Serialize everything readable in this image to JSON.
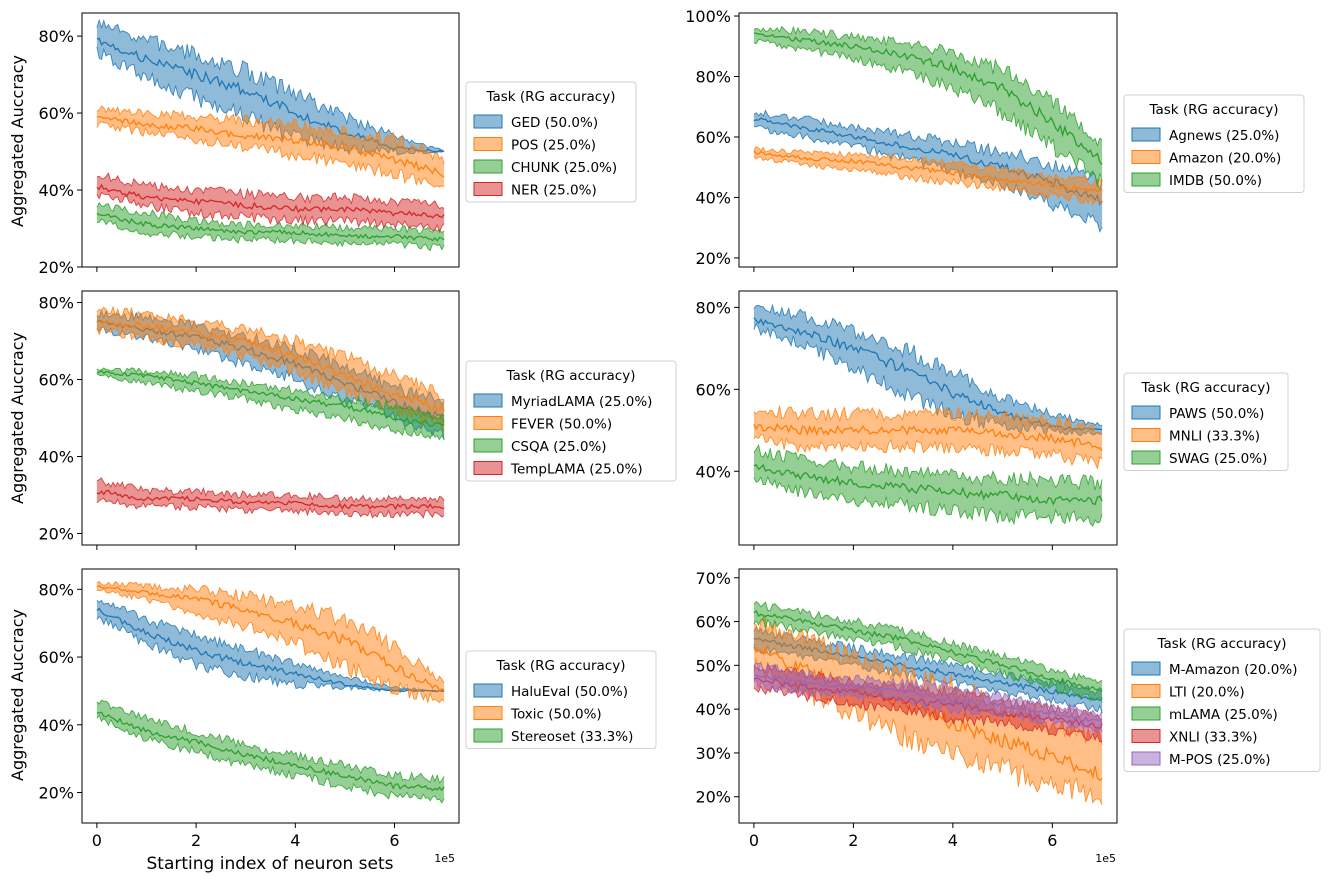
{
  "figure": {
    "ylabel": "Aggregated Auccracy",
    "xlabel": "Starting index of neuron sets",
    "x_exponent": "1e5"
  },
  "colors": {
    "blue": "#1f77b4",
    "orange": "#ff7f0e",
    "green": "#2ca02c",
    "red": "#d62728",
    "purple": "#9467bd"
  },
  "chart_data": [
    {
      "type": "area",
      "legend_title": "Task (RG accuracy)",
      "xlim": [
        -0.3,
        7.3
      ],
      "ylim": [
        20,
        86
      ],
      "xticks": [
        0,
        2,
        4,
        6
      ],
      "yticks": [
        20,
        40,
        60,
        80
      ],
      "ytick_format": "percent",
      "show_xticklabels": false,
      "show_ylabel": true,
      "show_xlabel": false,
      "series": [
        {
          "name": "GED (50.0%)",
          "color": "blue",
          "x": [
            0,
            1,
            2,
            3,
            4,
            5,
            6,
            7
          ],
          "mean": [
            79,
            74,
            70,
            66,
            60,
            55,
            51,
            50
          ],
          "upper": [
            83,
            79,
            75,
            71,
            65,
            59,
            54,
            50
          ],
          "lower": [
            76,
            69,
            64,
            59,
            54,
            51,
            50,
            50
          ]
        },
        {
          "name": "POS (25.0%)",
          "color": "orange",
          "x": [
            0,
            1,
            2,
            3,
            4,
            5,
            6,
            7
          ],
          "mean": [
            59,
            57,
            56,
            54,
            53,
            51,
            48,
            44
          ],
          "upper": [
            61,
            60,
            59,
            58,
            57,
            55,
            53,
            48
          ],
          "lower": [
            57,
            55,
            53,
            51,
            49,
            47,
            44,
            40
          ]
        },
        {
          "name": "CHUNK (25.0%)",
          "color": "green",
          "x": [
            0,
            1,
            2,
            3,
            4,
            5,
            6,
            7
          ],
          "mean": [
            34,
            31,
            30,
            29,
            29,
            28,
            28,
            27
          ],
          "upper": [
            36,
            34,
            32,
            31,
            31,
            30,
            30,
            29
          ],
          "lower": [
            32,
            29,
            28,
            27,
            27,
            26,
            26,
            25
          ]
        },
        {
          "name": "NER (25.0%)",
          "color": "red",
          "x": [
            0,
            1,
            2,
            3,
            4,
            5,
            6,
            7
          ],
          "mean": [
            41,
            38,
            37,
            36,
            35,
            35,
            34,
            33
          ],
          "upper": [
            44,
            41,
            40,
            39,
            38,
            38,
            37,
            36
          ],
          "lower": [
            39,
            36,
            34,
            33,
            32,
            32,
            31,
            30
          ]
        }
      ]
    },
    {
      "type": "area",
      "legend_title": "Task (RG accuracy)",
      "xlim": [
        -0.3,
        7.3
      ],
      "ylim": [
        17,
        101
      ],
      "xticks": [
        0,
        2,
        4,
        6
      ],
      "yticks": [
        20,
        40,
        60,
        80,
        100
      ],
      "ytick_format": "percent",
      "show_xticklabels": false,
      "show_ylabel": false,
      "show_xlabel": false,
      "series": [
        {
          "name": "Agnews (25.0%)",
          "color": "blue",
          "x": [
            0,
            1,
            2,
            3,
            4,
            5,
            6,
            7
          ],
          "mean": [
            66,
            63,
            60,
            57,
            54,
            50,
            45,
            39
          ],
          "upper": [
            68,
            66,
            63,
            61,
            58,
            55,
            51,
            45
          ],
          "lower": [
            63,
            60,
            57,
            53,
            49,
            44,
            38,
            31
          ]
        },
        {
          "name": "Amazon (20.0%)",
          "color": "orange",
          "x": [
            0,
            1,
            2,
            3,
            4,
            5,
            6,
            7
          ],
          "mean": [
            55,
            53,
            52,
            50,
            48,
            46,
            44,
            42
          ],
          "upper": [
            56,
            55,
            54,
            53,
            51,
            49,
            47,
            45
          ],
          "lower": [
            53,
            51,
            49,
            47,
            45,
            43,
            41,
            38
          ]
        },
        {
          "name": "IMDB (50.0%)",
          "color": "green",
          "x": [
            0,
            1,
            2,
            3,
            4,
            5,
            6,
            7
          ],
          "mean": [
            94,
            92,
            90,
            87,
            83,
            76,
            65,
            52
          ],
          "upper": [
            96,
            95,
            93,
            91,
            88,
            82,
            72,
            58
          ],
          "lower": [
            92,
            89,
            86,
            82,
            76,
            68,
            57,
            45
          ]
        }
      ]
    },
    {
      "type": "area",
      "legend_title": "Task (RG accuracy)",
      "xlim": [
        -0.3,
        7.3
      ],
      "ylim": [
        17,
        83
      ],
      "xticks": [
        0,
        2,
        4,
        6
      ],
      "yticks": [
        20,
        40,
        60,
        80
      ],
      "ytick_format": "percent",
      "show_xticklabels": false,
      "show_ylabel": true,
      "show_xlabel": false,
      "series": [
        {
          "name": "MyriadLAMA (25.0%)",
          "color": "blue",
          "x": [
            0,
            1,
            2,
            3,
            4,
            5,
            6,
            7
          ],
          "mean": [
            75,
            73,
            71,
            68,
            64,
            59,
            54,
            50
          ],
          "upper": [
            77,
            76,
            74,
            71,
            68,
            63,
            58,
            54
          ],
          "lower": [
            73,
            71,
            68,
            64,
            60,
            55,
            50,
            46
          ]
        },
        {
          "name": "FEVER (50.0%)",
          "color": "orange",
          "x": [
            0,
            1,
            2,
            3,
            4,
            5,
            6,
            7
          ],
          "mean": [
            75,
            74,
            72,
            70,
            66,
            61,
            56,
            52
          ],
          "upper": [
            78,
            77,
            75,
            73,
            70,
            66,
            61,
            56
          ],
          "lower": [
            73,
            71,
            69,
            66,
            62,
            57,
            52,
            48
          ]
        },
        {
          "name": "CSQA (25.0%)",
          "color": "green",
          "x": [
            0,
            1,
            2,
            3,
            4,
            5,
            6,
            7
          ],
          "mean": [
            62,
            61,
            59,
            57,
            55,
            53,
            50,
            48
          ],
          "upper": [
            63,
            62,
            61,
            59,
            57,
            55,
            53,
            50
          ],
          "lower": [
            61,
            59,
            57,
            55,
            52,
            50,
            47,
            45
          ]
        },
        {
          "name": "TempLAMA (25.0%)",
          "color": "red",
          "x": [
            0,
            1,
            2,
            3,
            4,
            5,
            6,
            7
          ],
          "mean": [
            31,
            29,
            29,
            28,
            28,
            27,
            27,
            27
          ],
          "upper": [
            34,
            31,
            31,
            30,
            30,
            29,
            29,
            29
          ],
          "lower": [
            29,
            27,
            27,
            26,
            26,
            25,
            25,
            25
          ]
        }
      ]
    },
    {
      "type": "area",
      "legend_title": "Task (RG accuracy)",
      "xlim": [
        -0.3,
        7.3
      ],
      "ylim": [
        22,
        84
      ],
      "xticks": [
        0,
        2,
        4,
        6
      ],
      "yticks": [
        40,
        60,
        80
      ],
      "ytick_format": "percent",
      "show_xticklabels": false,
      "show_ylabel": false,
      "show_xlabel": false,
      "series": [
        {
          "name": "PAWS (50.0%)",
          "color": "blue",
          "x": [
            0,
            1,
            2,
            3,
            4,
            5,
            6,
            7
          ],
          "mean": [
            77,
            74,
            70,
            65,
            59,
            54,
            51,
            50
          ],
          "upper": [
            80,
            78,
            74,
            70,
            64,
            58,
            54,
            51
          ],
          "lower": [
            75,
            71,
            65,
            59,
            54,
            51,
            50,
            49
          ]
        },
        {
          "name": "MNLI (33.3%)",
          "color": "orange",
          "x": [
            0,
            1,
            2,
            3,
            4,
            5,
            6,
            7
          ],
          "mean": [
            51,
            50,
            50,
            50,
            50,
            49,
            48,
            46
          ],
          "upper": [
            55,
            54,
            54,
            54,
            54,
            53,
            52,
            50
          ],
          "lower": [
            48,
            46,
            46,
            46,
            46,
            45,
            44,
            42
          ]
        },
        {
          "name": "SWAG (25.0%)",
          "color": "green",
          "x": [
            0,
            1,
            2,
            3,
            4,
            5,
            6,
            7
          ],
          "mean": [
            41,
            39,
            37,
            36,
            35,
            34,
            33,
            33
          ],
          "upper": [
            45,
            43,
            41,
            40,
            39,
            38,
            38,
            37
          ],
          "lower": [
            38,
            35,
            33,
            32,
            30,
            29,
            29,
            28
          ]
        }
      ]
    },
    {
      "type": "area",
      "legend_title": "Task (RG accuracy)",
      "xlim": [
        -0.3,
        7.3
      ],
      "ylim": [
        11,
        86
      ],
      "xticks": [
        0,
        2,
        4,
        6
      ],
      "yticks": [
        20,
        40,
        60,
        80
      ],
      "ytick_format": "percent",
      "show_xticklabels": true,
      "show_ylabel": true,
      "show_xlabel": true,
      "series": [
        {
          "name": "HaluEval (50.0%)",
          "color": "blue",
          "x": [
            0,
            1,
            2,
            3,
            4,
            5,
            6,
            7
          ],
          "mean": [
            74,
            67,
            62,
            58,
            55,
            52,
            50,
            50
          ],
          "upper": [
            77,
            71,
            66,
            62,
            58,
            54,
            51,
            50
          ],
          "lower": [
            72,
            64,
            58,
            54,
            52,
            51,
            50,
            50
          ]
        },
        {
          "name": "Toxic (50.0%)",
          "color": "orange",
          "x": [
            0,
            1,
            2,
            3,
            4,
            5,
            6,
            7
          ],
          "mean": [
            81,
            79,
            77,
            74,
            70,
            65,
            57,
            50
          ],
          "upper": [
            82,
            81,
            80,
            78,
            75,
            71,
            63,
            53
          ],
          "lower": [
            80,
            77,
            73,
            69,
            64,
            57,
            51,
            47
          ]
        },
        {
          "name": "Stereoset (33.3%)",
          "color": "green",
          "x": [
            0,
            1,
            2,
            3,
            4,
            5,
            6,
            7
          ],
          "mean": [
            44,
            38,
            35,
            31,
            28,
            25,
            22,
            21
          ],
          "upper": [
            47,
            42,
            38,
            34,
            31,
            28,
            25,
            24
          ],
          "lower": [
            42,
            36,
            32,
            28,
            25,
            22,
            19,
            18
          ]
        }
      ]
    },
    {
      "type": "area",
      "legend_title": "Task (RG accuracy)",
      "xlim": [
        -0.3,
        7.3
      ],
      "ylim": [
        14,
        72
      ],
      "xticks": [
        0,
        2,
        4,
        6
      ],
      "yticks": [
        20,
        30,
        40,
        50,
        60,
        70
      ],
      "ytick_format": "percent",
      "show_xticklabels": true,
      "show_ylabel": false,
      "show_xlabel": false,
      "series": [
        {
          "name": "M-Amazon (20.0%)",
          "color": "blue",
          "x": [
            0,
            1,
            2,
            3,
            4,
            5,
            6,
            7
          ],
          "mean": [
            56,
            54,
            52,
            50,
            48,
            46,
            44,
            42
          ],
          "upper": [
            58,
            56,
            54,
            52,
            50,
            48,
            46,
            44
          ],
          "lower": [
            54,
            52,
            50,
            48,
            46,
            44,
            42,
            40
          ]
        },
        {
          "name": "LTI (20.0%)",
          "color": "orange",
          "x": [
            0,
            1,
            2,
            3,
            4,
            5,
            6,
            7
          ],
          "mean": [
            54,
            49,
            45,
            41,
            37,
            33,
            29,
            25
          ],
          "upper": [
            60,
            56,
            52,
            48,
            45,
            41,
            37,
            33
          ],
          "lower": [
            50,
            44,
            39,
            34,
            30,
            26,
            23,
            20
          ]
        },
        {
          "name": "mLAMA (25.0%)",
          "color": "green",
          "x": [
            0,
            1,
            2,
            3,
            4,
            5,
            6,
            7
          ],
          "mean": [
            62,
            60,
            58,
            56,
            53,
            50,
            47,
            44
          ],
          "upper": [
            64,
            62,
            60,
            58,
            55,
            52,
            49,
            46
          ],
          "lower": [
            60,
            58,
            56,
            54,
            51,
            48,
            45,
            42
          ]
        },
        {
          "name": "XNLI (33.3%)",
          "color": "red",
          "x": [
            0,
            1,
            2,
            3,
            4,
            5,
            6,
            7
          ],
          "mean": [
            47,
            45,
            44,
            42,
            41,
            39,
            38,
            36
          ],
          "upper": [
            50,
            48,
            46,
            45,
            44,
            42,
            40,
            38
          ],
          "lower": [
            45,
            43,
            41,
            40,
            38,
            37,
            35,
            33
          ]
        },
        {
          "name": "M-POS (25.0%)",
          "color": "purple",
          "x": [
            0,
            1,
            2,
            3,
            4,
            5,
            6,
            7
          ],
          "mean": [
            48,
            46,
            45,
            44,
            42,
            41,
            39,
            37
          ],
          "upper": [
            50,
            48,
            47,
            46,
            45,
            43,
            41,
            39
          ],
          "lower": [
            46,
            44,
            43,
            42,
            40,
            39,
            37,
            35
          ]
        }
      ]
    }
  ]
}
